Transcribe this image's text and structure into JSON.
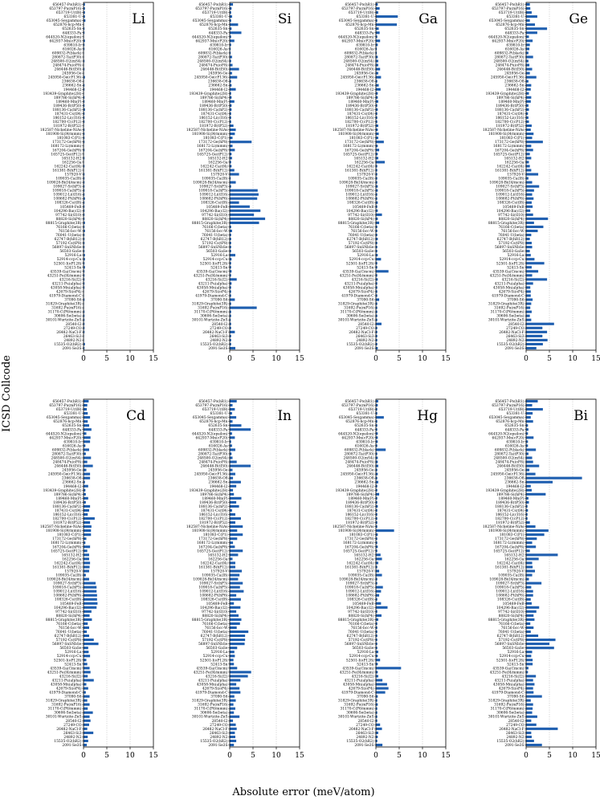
{
  "figure": {
    "xlabel": "Absolute error (meV/atom)",
    "ylabel": "ICSD Collcode",
    "bar_color": "#1f5fb0"
  },
  "chart_data": {
    "type": "bar",
    "orientation": "horizontal",
    "xlim": [
      0,
      15
    ],
    "xticks": [
      "0",
      "5",
      "10",
      "15"
    ],
    "categories": [
      "656457-Po(hR1)",
      "653797-Pu(mP16)",
      "653719-U(tI8)",
      "653381-U",
      "653045-Se(gamma)",
      "652876-hcp-Mn",
      "652635-Sn",
      "648333-Pa",
      "644520-N2(epsilon)",
      "642937-Mn(cP20)",
      "639810-Ir",
      "616026-As",
      "609832-P(black)",
      "280872-Ta(tP30)",
      "248500-O2(mS4)",
      "248474-Pu(oF8)",
      "246446-B(tI50)",
      "245956-Ge",
      "245950-Ge(cF136)",
      "236638-O8",
      "236662-Sn",
      "194468-I2",
      "193439-Graphite(2H)",
      "189786-Si(hP4)",
      "189460-Mn(P)",
      "189436-B(tP50)",
      "188136-Ca(hP2)",
      "187431-Cs(tI4)",
      "186152-Li(cI16)",
      "182700-C(cP12)",
      "181972-B(tP52)",
      "182587-Nickeline-NiAs",
      "181908-Si(I4/mmm)",
      "181083-C(P1)",
      "173172-Ge(hP8)",
      "168172-Li(mmm)",
      "167204-Ge(hP8)",
      "165725-Ge(tP12)",
      "165132-H2",
      "162256-Ga",
      "162242-Ca(tI4)",
      "161381-B(hP12)",
      "157920-V",
      "109035-Ca(I8)",
      "109028-Bi(I4/mcm)",
      "109027-Sr(hP3)",
      "109018-Ca(hP5)",
      "109012-Li(tI16)",
      "108682-Pt(hP6)",
      "108326-Cs(tI8)",
      "105489-FeB",
      "104296-Ba(cI2)",
      "97742-Si(tI10)",
      "88820-Si(hP4)",
      "88815-Graphite(3R)",
      "76166-C(beta)",
      "76156-bcc-W",
      "76041-U(beta)",
      "62747-B(hR12)",
      "57192-Cs(tP8)",
      "56897-SnSNbSe",
      "56503-GaSe",
      "52916-La",
      "52914-ccp-Cu",
      "52501-I(oP128)",
      "52413-Sn",
      "43539-Ga(Cmcm)",
      "43251-Fe(I4/mmm)",
      "43216-Si(I2)",
      "43211-Pu(alpha)",
      "43058-Mn(alpha)",
      "42679-Si(oP4)",
      "41979-Diamond-C",
      "37090-S6",
      "31829-Graphite(3R)",
      "31692-Pu(mP16)",
      "31170-C(P6/mmm)",
      "30606-Se(beta)",
      "30101-Wurtzite-ZnS",
      "28540-I2",
      "27249-CO",
      "26482-NaCl-F",
      "26463-Si3",
      "24892-N2",
      "15535-O2(hR2)",
      "2091-Se3S"
    ],
    "panels": [
      {
        "title": "Li",
        "values": [
          0.3,
          0.3,
          0.3,
          0.3,
          0.4,
          0.1,
          0.2,
          0.2,
          0.1,
          0.3,
          0.2,
          0.2,
          0.1,
          0.1,
          0.2,
          0.1,
          0.2,
          0.1,
          0.3,
          0.1,
          0.2,
          0.2,
          0.1,
          0.2,
          0.2,
          0.2,
          0.3,
          0.2,
          0.2,
          0.2,
          0.1,
          0.2,
          0.2,
          0.2,
          0.2,
          0.1,
          0.2,
          0.1,
          0.2,
          0.1,
          0.2,
          0.1,
          0.2,
          0.2,
          0.2,
          0.2,
          0.2,
          0.2,
          0.3,
          0.2,
          0.2,
          0.2,
          0.2,
          0.2,
          0.3,
          0.2,
          0.3,
          0.2,
          0.2,
          0.2,
          0.2,
          0.2,
          0.3,
          0.3,
          0.2,
          0.3,
          0.2,
          0.2,
          0.2,
          0.2,
          0.2,
          0.1,
          0.1,
          0.2,
          0.1,
          0.1,
          0.2,
          0.2,
          0.2,
          0.2,
          0.2,
          0.2,
          0.1,
          0.1,
          0.3,
          0.2
        ]
      },
      {
        "title": "Si",
        "values": [
          0.7,
          0.4,
          0.3,
          0.5,
          0.3,
          1.8,
          0.4,
          2.5,
          0.3,
          1.0,
          0.3,
          0.2,
          0.2,
          0.5,
          0.3,
          0.6,
          2.0,
          0.5,
          1.6,
          0.3,
          0.4,
          1.3,
          0.3,
          0.4,
          1.0,
          0.4,
          0.4,
          0.3,
          0.3,
          0.3,
          0.8,
          1.3,
          1.1,
          0.6,
          4.7,
          0.6,
          1.1,
          0.4,
          0.5,
          0.3,
          0.4,
          1.0,
          2.0,
          0.2,
          1.3,
          0.3,
          6.0,
          6.2,
          5.9,
          2.0,
          4.3,
          6.6,
          5.2,
          7.6,
          6.3,
          0.3,
          0.5,
          0.3,
          0.3,
          0.3,
          0.3,
          0.3,
          1.2,
          0.4,
          0.3,
          0.3,
          0.4,
          0.3,
          1.5,
          0.4,
          0.3,
          0.3,
          0.3,
          1.1,
          0.3,
          5.8,
          0.3,
          0.3,
          0.2,
          0.3,
          0.3,
          1.1,
          0.3,
          0.3,
          0.3,
          1.2
        ]
      },
      {
        "title": "Ga",
        "values": [
          0.4,
          0.8,
          0.5,
          4.7,
          0.3,
          4.5,
          0.6,
          0.8,
          0.3,
          0.9,
          0.4,
          0.2,
          0.2,
          0.4,
          0.5,
          0.5,
          0.9,
          0.5,
          1.1,
          0.3,
          0.6,
          1.0,
          0.4,
          0.4,
          0.5,
          0.3,
          0.4,
          0.3,
          0.3,
          0.3,
          0.5,
          0.4,
          0.6,
          0.5,
          1.7,
          0.4,
          0.7,
          0.4,
          0.5,
          1.9,
          0.3,
          0.3,
          0.3,
          0.3,
          0.3,
          0.4,
          0.4,
          0.3,
          0.3,
          0.4,
          0.3,
          0.4,
          1.3,
          0.4,
          0.7,
          0.3,
          0.3,
          0.3,
          0.4,
          0.3,
          0.3,
          0.3,
          0.4,
          1.1,
          0.3,
          0.3,
          2.7,
          0.3,
          0.4,
          0.3,
          0.3,
          0.3,
          0.3,
          0.7,
          0.3,
          0.3,
          0.3,
          0.3,
          0.3,
          1.2,
          0.3,
          0.3,
          0.3,
          0.3,
          0.3,
          0.4
        ]
      },
      {
        "title": "Ge",
        "values": [
          0.8,
          0.9,
          1.2,
          2.4,
          0.8,
          1.9,
          4.5,
          2.4,
          0.6,
          1.4,
          0.8,
          0.7,
          0.5,
          1.5,
          0.5,
          0.7,
          1.3,
          0.8,
          2.2,
          0.5,
          1.1,
          1.0,
          0.6,
          1.1,
          1.0,
          0.5,
          0.6,
          0.4,
          0.5,
          0.6,
          1.2,
          1.0,
          1.6,
          1.3,
          3.6,
          1.1,
          1.5,
          0.8,
          1.1,
          0.6,
          0.8,
          1.1,
          2.6,
          0.5,
          1.3,
          2.8,
          1.7,
          1.3,
          1.6,
          1.2,
          1.4,
          0.9,
          1.5,
          4.7,
          1.7,
          3.7,
          2.5,
          1.1,
          0.8,
          1.2,
          1.3,
          0.8,
          1.0,
          1.8,
          3.9,
          1.2,
          2.6,
          1.3,
          4.5,
          1.5,
          0.9,
          1.0,
          1.0,
          1.4,
          1.1,
          0.9,
          1.2,
          0.8,
          1.1,
          6.0,
          3.5,
          4.5,
          3.5,
          4.6,
          3.6,
          2.2
        ]
      },
      {
        "title": "Cd",
        "values": [
          1.1,
          0.8,
          0.7,
          0.9,
          1.4,
          0.9,
          1.2,
          1.7,
          0.6,
          1.5,
          1.4,
          0.4,
          1.2,
          0.5,
          1.6,
          0.8,
          2.0,
          0.6,
          1.4,
          1.4,
          0.3,
          1.0,
          0.4,
          0.5,
          1.0,
          0.5,
          1.4,
          1.2,
          0.9,
          2.4,
          1.4,
          1.7,
          1.6,
          1.6,
          0.6,
          0.4,
          1.4,
          0.8,
          1.2,
          1.2,
          1.4,
          1.3,
          1.2,
          0.5,
          1.2,
          2.6,
          2.8,
          2.8,
          2.9,
          2.9,
          3.0,
          2.8,
          1.7,
          1.3,
          1.8,
          0.9,
          1.2,
          0.7,
          1.2,
          2.2,
          3.2,
          1.0,
          1.1,
          1.4,
          0.6,
          0.8,
          1.3,
          1.5,
          0.9,
          2.2,
          0.6,
          1.0,
          0.5,
          1.3,
          0.8,
          1.3,
          0.9,
          2.0,
          1.3,
          1.5,
          1.2,
          0.8,
          2.1,
          0.9,
          1.0,
          0.7
        ]
      },
      {
        "title": "In",
        "values": [
          1.5,
          0.6,
          1.1,
          0.5,
          1.4,
          0.6,
          2.5,
          4.5,
          0.5,
          1.1,
          0.3,
          0.5,
          1.2,
          0.4,
          0.6,
          1.5,
          4.5,
          0.6,
          1.2,
          0.7,
          2.4,
          1.4,
          0.7,
          0.9,
          2.5,
          1.4,
          2.0,
          0.5,
          1.2,
          2.4,
          1.2,
          2.8,
          1.6,
          2.8,
          1.6,
          0.7,
          1.1,
          2.8,
          1.8,
          0.6,
          1.2,
          1.2,
          2.6,
          2.1,
          1.8,
          2.8,
          2.2,
          3.0,
          1.4,
          2.4,
          0.9,
          2.3,
          1.4,
          1.9,
          2.5,
          2.2,
          1.5,
          4.0,
          3.3,
          3.3,
          3.2,
          1.6,
          1.0,
          1.1,
          0.8,
          0.9,
          1.6,
          4.6,
          3.9,
          2.3,
          1.4,
          2.1,
          2.3,
          1.0,
          1.3,
          0.8,
          1.2,
          0.9,
          2.1,
          0.7,
          1.3,
          1.5,
          1.1,
          1.2,
          1.4,
          0.9
        ]
      },
      {
        "title": "Hg",
        "values": [
          0.5,
          0.4,
          0.3,
          0.3,
          1.7,
          0.3,
          0.3,
          0.3,
          0.4,
          0.4,
          0.4,
          0.3,
          2.1,
          0.3,
          0.4,
          0.4,
          0.5,
          0.3,
          0.4,
          0.3,
          0.5,
          0.3,
          0.3,
          0.7,
          0.3,
          0.3,
          0.4,
          0.3,
          0.3,
          0.3,
          0.3,
          0.3,
          3.9,
          0.4,
          0.3,
          0.3,
          0.4,
          0.3,
          1.0,
          1.3,
          0.5,
          0.3,
          0.7,
          1.3,
          0.3,
          0.3,
          1.5,
          1.1,
          0.7,
          0.3,
          1.1,
          2.5,
          0.3,
          1.2,
          0.5,
          0.3,
          0.3,
          0.3,
          0.3,
          0.3,
          0.3,
          0.3,
          0.5,
          0.4,
          0.9,
          0.4,
          5.4,
          0.4,
          0.5,
          1.4,
          2.4,
          2.7,
          2.0,
          0.4,
          0.3,
          0.4,
          0.3,
          0.3,
          0.3,
          0.3,
          0.9,
          1.3,
          0.5,
          0.4,
          0.3,
          1.4
        ]
      },
      {
        "title": "Bi",
        "values": [
          2.5,
          1.3,
          3.6,
          1.4,
          1.0,
          1.5,
          0.4,
          0.5,
          0.4,
          1.6,
          0.4,
          0.4,
          2.1,
          0.5,
          1.3,
          1.5,
          2.8,
          0.7,
          2.0,
          12.0,
          5.7,
          1.0,
          1.2,
          4.2,
          0.5,
          0.6,
          0.3,
          0.4,
          0.3,
          0.3,
          0.8,
          2.0,
          4.8,
          3.9,
          2.3,
          1.3,
          2.1,
          0.8,
          6.8,
          2.7,
          1.3,
          1.4,
          1.9,
          1.3,
          0.6,
          3.3,
          1.1,
          1.5,
          1.5,
          1.0,
          1.2,
          2.8,
          2.2,
          1.6,
          1.8,
          0.9,
          1.6,
          1.0,
          2.6,
          6.3,
          5.0,
          6.0,
          1.3,
          1.1,
          1.4,
          1.4,
          0.5,
          0.4,
          2.1,
          1.5,
          1.8,
          1.5,
          1.6,
          3.4,
          1.0,
          1.5,
          1.4,
          1.3,
          2.4,
          1.1,
          2.2,
          6.8,
          1.1,
          1.2,
          1.7,
          3.4
        ]
      }
    ]
  }
}
